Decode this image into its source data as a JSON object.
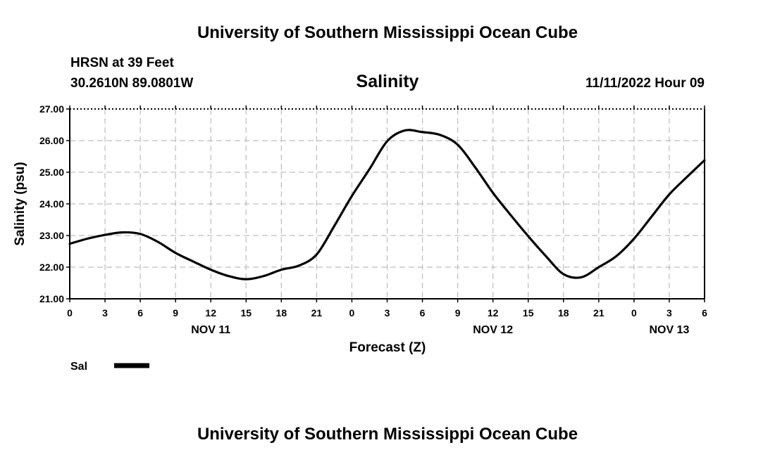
{
  "page": {
    "title_top": "University of Southern Mississippi Ocean Cube",
    "station": "HRSN at 39 Feet",
    "coords": "30.2610N  89.0801W",
    "variable": "Salinity",
    "run_time": "11/11/2022 Hour 09",
    "title_bottom": "University of Southern Mississippi Ocean Cube"
  },
  "chart_data": {
    "type": "line",
    "title": "Salinity",
    "xlabel": "Forecast (Z)",
    "ylabel": "Salinity (psu)",
    "ylim": [
      21.0,
      27.0
    ],
    "xlim": [
      0,
      54
    ],
    "grid": true,
    "y_ticks": [
      "21.00",
      "22.00",
      "23.00",
      "24.00",
      "25.00",
      "26.00",
      "27.00"
    ],
    "x_ticks": [
      "0",
      "3",
      "6",
      "9",
      "12",
      "15",
      "18",
      "21",
      "0",
      "3",
      "6",
      "9",
      "12",
      "15",
      "18",
      "21",
      "0",
      "3",
      "6"
    ],
    "date_labels": [
      {
        "label": "NOV 11",
        "hour": 12
      },
      {
        "label": "NOV 12",
        "hour": 36
      },
      {
        "label": "NOV 13",
        "hour": 51
      }
    ],
    "legend": {
      "label": "Sal",
      "position": "bottom-left"
    },
    "series": [
      {
        "name": "Sal",
        "color": "#000000",
        "x": [
          0,
          1.5,
          3,
          4.5,
          6,
          7.5,
          9,
          10.5,
          12,
          13.5,
          15,
          16.5,
          18,
          19.5,
          21,
          22.5,
          24,
          25.5,
          27,
          28.5,
          30,
          31.5,
          33,
          34.5,
          36,
          37.5,
          39,
          40.5,
          42,
          43.5,
          45,
          46.5,
          48,
          49.5,
          51,
          52.5,
          54
        ],
        "values": [
          22.74,
          22.9,
          23.02,
          23.1,
          23.05,
          22.8,
          22.45,
          22.18,
          21.92,
          21.72,
          21.62,
          21.72,
          21.92,
          22.05,
          22.4,
          23.3,
          24.25,
          25.1,
          25.98,
          26.32,
          26.27,
          26.18,
          25.87,
          25.15,
          24.35,
          23.65,
          22.98,
          22.35,
          21.78,
          21.68,
          22.0,
          22.35,
          22.9,
          23.6,
          24.3,
          24.85,
          25.38
        ]
      }
    ]
  }
}
